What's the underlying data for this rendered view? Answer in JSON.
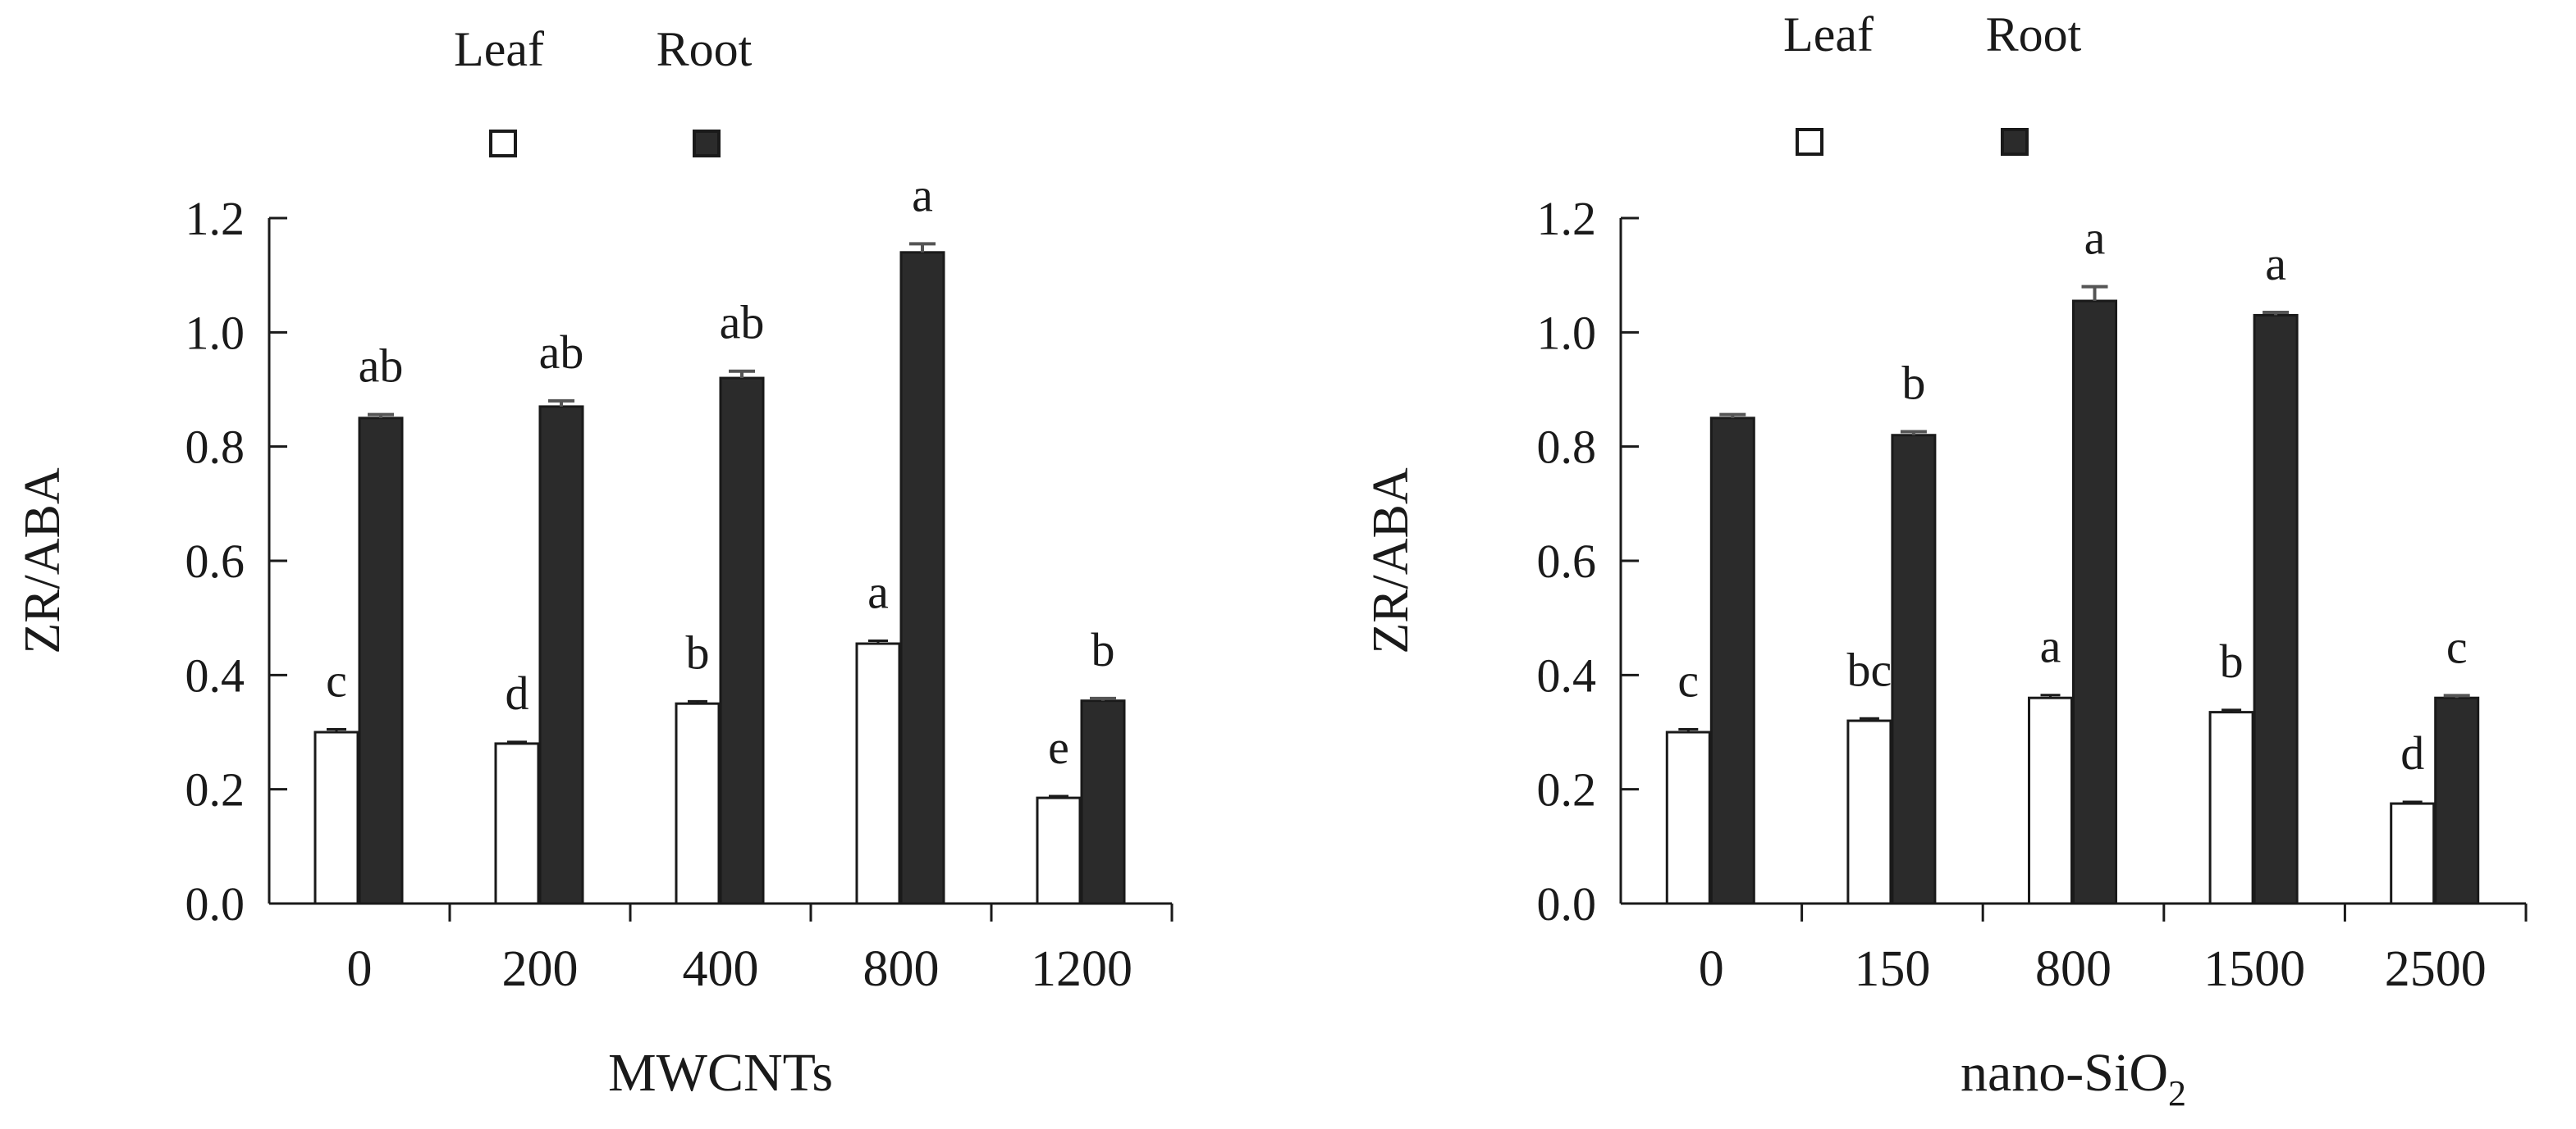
{
  "colors": {
    "leaf": "#ffffff",
    "root": "#2b2b2b",
    "axis": "#1a1a1a",
    "error": "#555555"
  },
  "chart_data": [
    {
      "type": "bar",
      "title": "",
      "xlabel": "MWCNTs",
      "xlabel_sub": "",
      "ylabel": "ZR/ABA",
      "ylim": [
        0,
        1.2
      ],
      "yticks": [
        "0.0",
        "0.2",
        "0.4",
        "0.6",
        "0.8",
        "1.0",
        "1.2"
      ],
      "legend": [
        "Leaf",
        "Root"
      ],
      "categories": [
        "0",
        "200",
        "400",
        "800",
        "1200"
      ],
      "series": [
        {
          "name": "Leaf",
          "values": [
            0.3,
            0.28,
            0.35,
            0.455,
            0.185
          ],
          "errors": [
            0.005,
            0.003,
            0.004,
            0.005,
            0.003
          ],
          "labels": [
            "c",
            "d",
            "b",
            "a",
            "e"
          ]
        },
        {
          "name": "Root",
          "values": [
            0.85,
            0.87,
            0.92,
            1.14,
            0.355
          ],
          "errors": [
            0.006,
            0.01,
            0.012,
            0.015,
            0.004
          ],
          "labels": [
            "ab",
            "ab",
            "ab",
            "a",
            "b"
          ]
        }
      ]
    },
    {
      "type": "bar",
      "title": "",
      "xlabel": "nano-SiO",
      "xlabel_sub": "2",
      "ylabel": "ZR/ABA",
      "ylim": [
        0,
        1.2
      ],
      "yticks": [
        "0.0",
        "0.2",
        "0.4",
        "0.6",
        "0.8",
        "1.0",
        "1.2"
      ],
      "legend": [
        "Leaf",
        "Root"
      ],
      "categories": [
        "0",
        "150",
        "800",
        "1500",
        "2500"
      ],
      "series": [
        {
          "name": "Leaf",
          "values": [
            0.3,
            0.32,
            0.36,
            0.335,
            0.175
          ],
          "errors": [
            0.005,
            0.004,
            0.005,
            0.004,
            0.003
          ],
          "labels": [
            "c",
            "bc",
            "a",
            "b",
            "d"
          ]
        },
        {
          "name": "Root",
          "values": [
            0.85,
            0.82,
            1.055,
            1.03,
            0.36
          ],
          "errors": [
            0.006,
            0.006,
            0.025,
            0.005,
            0.004
          ],
          "labels": [
            "",
            "b",
            "a",
            "a",
            "c"
          ]
        }
      ]
    }
  ]
}
